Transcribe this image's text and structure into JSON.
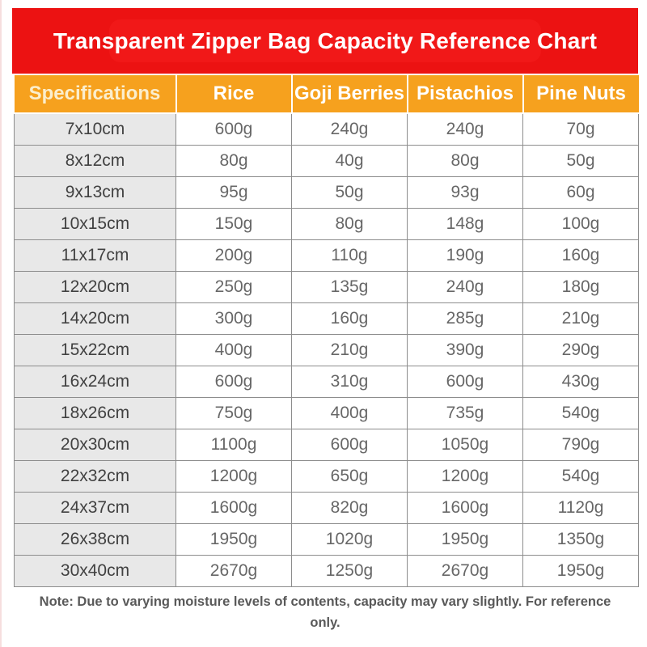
{
  "page_title": "Transparent Zipper Bag Capacity Reference Chart",
  "colors": {
    "banner_red": "#ec1212",
    "header_orange": "#f6a11e",
    "spec_cell_gray": "#e8e8e8",
    "cell_border_gray": "#8d8d8d",
    "data_text_gray": "#676767",
    "note_text_gray": "#595959",
    "header_text_white": "#ffffff"
  },
  "chart_data": {
    "type": "table",
    "title": "Transparent Zipper Bag Capacity Reference Chart",
    "columns": [
      "Specifications",
      "Rice",
      "Goji Berries",
      "Pistachios",
      "Pine Nuts"
    ],
    "rows": [
      [
        "7x10cm",
        "600g",
        "240g",
        "240g",
        "70g"
      ],
      [
        "8x12cm",
        "80g",
        "40g",
        "80g",
        "50g"
      ],
      [
        "9x13cm",
        "95g",
        "50g",
        "93g",
        "60g"
      ],
      [
        "10x15cm",
        "150g",
        "80g",
        "148g",
        "100g"
      ],
      [
        "11x17cm",
        "200g",
        "110g",
        "190g",
        "160g"
      ],
      [
        "12x20cm",
        "250g",
        "135g",
        "240g",
        "180g"
      ],
      [
        "14x20cm",
        "300g",
        "160g",
        "285g",
        "210g"
      ],
      [
        "15x22cm",
        "400g",
        "210g",
        "390g",
        "290g"
      ],
      [
        "16x24cm",
        "600g",
        "310g",
        "600g",
        "430g"
      ],
      [
        "18x26cm",
        "750g",
        "400g",
        "735g",
        "540g"
      ],
      [
        "20x30cm",
        "1100g",
        "600g",
        "1050g",
        "790g"
      ],
      [
        "22x32cm",
        "1200g",
        "650g",
        "1200g",
        "540g"
      ],
      [
        "24x37cm",
        "1600g",
        "820g",
        "1600g",
        "1120g"
      ],
      [
        "26x38cm",
        "1950g",
        "1020g",
        "1950g",
        "1350g"
      ],
      [
        "30x40cm",
        "2670g",
        "1250g",
        "2670g",
        "1950g"
      ]
    ],
    "note": "Note: Due to varying moisture levels of contents, capacity may vary slightly. For reference only.",
    "layout": "title banner top, header row orange, spec column gray, 15 data rows, footnote bottom"
  }
}
